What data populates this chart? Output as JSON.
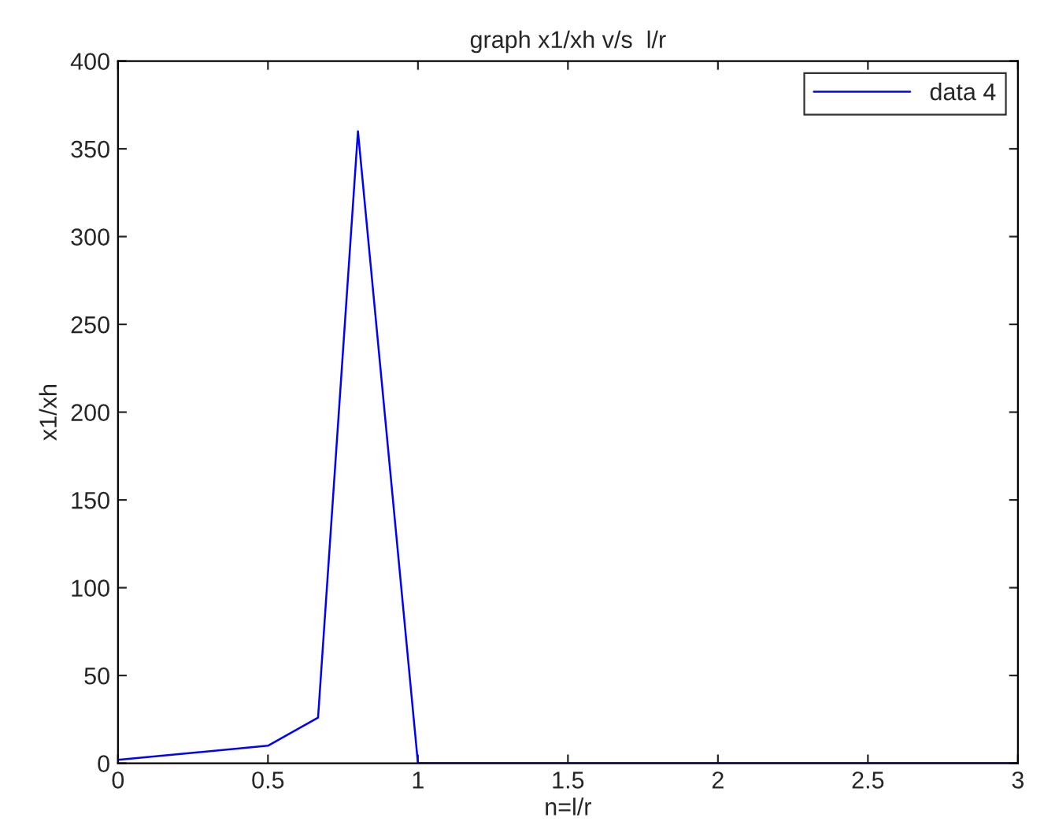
{
  "chart_data": {
    "type": "line",
    "title": "graph x1/xh v/s  l/r",
    "xlabel": "n=l/r",
    "ylabel": "x1/xh",
    "x": [
      0,
      0.5,
      0.667,
      0.8,
      1,
      3
    ],
    "series": [
      {
        "name": "data 4",
        "color": "#0000ff",
        "values": [
          2,
          10,
          26,
          360,
          0,
          0
        ]
      }
    ],
    "xlim": [
      0,
      3
    ],
    "xticks": [
      0,
      0.5,
      1,
      1.5,
      2,
      2.5,
      3
    ],
    "ylim": [
      0,
      400
    ],
    "yticks": [
      0,
      50,
      100,
      150,
      200,
      250,
      300,
      350,
      400
    ],
    "grid": false,
    "legend": "top right",
    "marker": "none",
    "line_style": "solid"
  }
}
